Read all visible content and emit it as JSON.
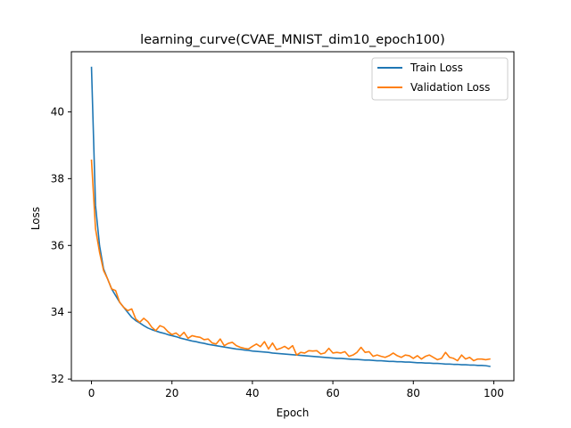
{
  "chart_data": {
    "type": "line",
    "title": "learning_curve(CVAE_MNIST_dim10_epoch100)",
    "xlabel": "Epoch",
    "ylabel": "Loss",
    "xlim": [
      -5,
      105
    ],
    "ylim": [
      31.95,
      41.8
    ],
    "xticks": [
      0,
      20,
      40,
      60,
      80,
      100
    ],
    "yticks": [
      32,
      34,
      36,
      38,
      40
    ],
    "grid": false,
    "legend_position": "top-right",
    "series": [
      {
        "name": "Train Loss",
        "color": "#1f77b4",
        "x": [
          0,
          1,
          2,
          3,
          4,
          5,
          6,
          7,
          8,
          9,
          10,
          11,
          12,
          13,
          14,
          15,
          16,
          17,
          18,
          19,
          20,
          21,
          22,
          23,
          24,
          25,
          26,
          27,
          28,
          29,
          30,
          31,
          32,
          33,
          34,
          35,
          36,
          37,
          38,
          39,
          40,
          41,
          42,
          43,
          44,
          45,
          46,
          47,
          48,
          49,
          50,
          51,
          52,
          53,
          54,
          55,
          56,
          57,
          58,
          59,
          60,
          61,
          62,
          63,
          64,
          65,
          66,
          67,
          68,
          69,
          70,
          71,
          72,
          73,
          74,
          75,
          76,
          77,
          78,
          79,
          80,
          81,
          82,
          83,
          84,
          85,
          86,
          87,
          88,
          89,
          90,
          91,
          92,
          93,
          94,
          95,
          96,
          97,
          98,
          99
        ],
        "values": [
          41.33,
          37.2,
          36.0,
          35.3,
          35.0,
          34.7,
          34.5,
          34.3,
          34.15,
          34.0,
          33.85,
          33.75,
          33.68,
          33.6,
          33.53,
          33.48,
          33.44,
          33.4,
          33.37,
          33.33,
          33.3,
          33.27,
          33.23,
          33.2,
          33.17,
          33.14,
          33.12,
          33.09,
          33.07,
          33.04,
          33.02,
          33.0,
          32.98,
          32.96,
          32.94,
          32.92,
          32.9,
          32.89,
          32.87,
          32.86,
          32.84,
          32.83,
          32.82,
          32.81,
          32.8,
          32.78,
          32.77,
          32.76,
          32.75,
          32.74,
          32.73,
          32.72,
          32.71,
          32.7,
          32.69,
          32.68,
          32.67,
          32.66,
          32.65,
          32.64,
          32.63,
          32.62,
          32.62,
          32.61,
          32.6,
          32.59,
          32.59,
          32.58,
          32.57,
          32.57,
          32.56,
          32.55,
          32.55,
          32.54,
          32.53,
          32.53,
          32.52,
          32.52,
          32.51,
          32.51,
          32.5,
          32.49,
          32.49,
          32.48,
          32.48,
          32.47,
          32.47,
          32.46,
          32.45,
          32.45,
          32.44,
          32.44,
          32.43,
          32.43,
          32.42,
          32.42,
          32.41,
          32.41,
          32.4,
          32.38
        ]
      },
      {
        "name": "Validation Loss",
        "color": "#ff7f0e",
        "x": [
          0,
          1,
          2,
          3,
          4,
          5,
          6,
          7,
          8,
          9,
          10,
          11,
          12,
          13,
          14,
          15,
          16,
          17,
          18,
          19,
          20,
          21,
          22,
          23,
          24,
          25,
          26,
          27,
          28,
          29,
          30,
          31,
          32,
          33,
          34,
          35,
          36,
          37,
          38,
          39,
          40,
          41,
          42,
          43,
          44,
          45,
          46,
          47,
          48,
          49,
          50,
          51,
          52,
          53,
          54,
          55,
          56,
          57,
          58,
          59,
          60,
          61,
          62,
          63,
          64,
          65,
          66,
          67,
          68,
          69,
          70,
          71,
          72,
          73,
          74,
          75,
          76,
          77,
          78,
          79,
          80,
          81,
          82,
          83,
          84,
          85,
          86,
          87,
          88,
          89,
          90,
          91,
          92,
          93,
          94,
          95,
          96,
          97,
          98,
          99
        ],
        "values": [
          38.55,
          36.5,
          35.8,
          35.25,
          35.0,
          34.7,
          34.65,
          34.3,
          34.15,
          34.05,
          34.1,
          33.8,
          33.7,
          33.82,
          33.72,
          33.55,
          33.45,
          33.6,
          33.55,
          33.42,
          33.33,
          33.38,
          33.28,
          33.4,
          33.22,
          33.3,
          33.27,
          33.25,
          33.18,
          33.2,
          33.08,
          33.05,
          33.2,
          33.0,
          33.07,
          33.1,
          33.0,
          32.95,
          32.92,
          32.9,
          32.98,
          33.05,
          32.97,
          33.12,
          32.9,
          33.08,
          32.88,
          32.92,
          32.98,
          32.9,
          33.0,
          32.72,
          32.8,
          32.78,
          32.85,
          32.84,
          32.85,
          32.75,
          32.78,
          32.92,
          32.78,
          32.8,
          32.78,
          32.82,
          32.68,
          32.72,
          32.8,
          32.95,
          32.8,
          32.82,
          32.68,
          32.72,
          32.68,
          32.65,
          32.7,
          32.78,
          32.7,
          32.65,
          32.72,
          32.7,
          32.62,
          32.7,
          32.6,
          32.68,
          32.72,
          32.65,
          32.58,
          32.62,
          32.8,
          32.65,
          32.62,
          32.55,
          32.72,
          32.6,
          32.65,
          32.55,
          32.6,
          32.6,
          32.58,
          32.6
        ]
      }
    ]
  }
}
